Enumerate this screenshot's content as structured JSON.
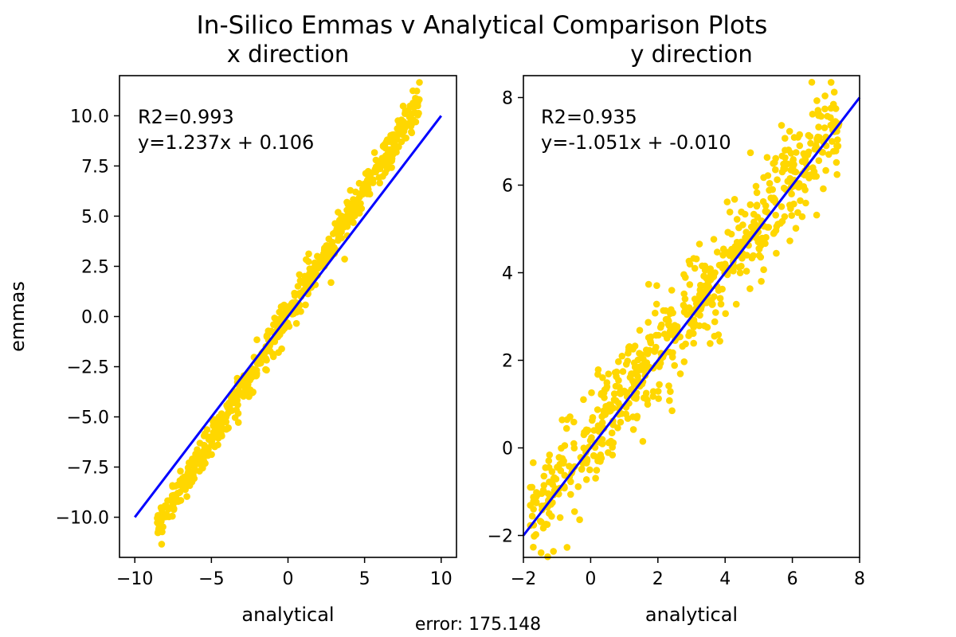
{
  "figure": {
    "suptitle": "In-Silico Emmas v Analytical Comparison Plots",
    "footer": "error: 175.148",
    "point_color": "#FFD700",
    "line_color": "#0000FF"
  },
  "chart_data": [
    {
      "type": "scatter",
      "title": "x direction",
      "xlabel": "analytical",
      "ylabel": "emmas",
      "xlim": [
        -11,
        11
      ],
      "ylim": [
        -12,
        12
      ],
      "xticks": [
        -10,
        -5,
        0,
        5,
        10
      ],
      "xtick_labels": [
        "−10",
        "−5",
        "0",
        "5",
        "10"
      ],
      "yticks": [
        -10,
        -7.5,
        -5,
        -2.5,
        0,
        2.5,
        5,
        7.5,
        10
      ],
      "ytick_labels": [
        "−10.0",
        "−7.5",
        "−5.0",
        "−2.5",
        "0.0",
        "2.5",
        "5.0",
        "7.5",
        "10.0"
      ],
      "grid": false,
      "annotation": [
        "R2=0.993",
        "y=1.237x + 0.106"
      ],
      "fit_line": {
        "x": [
          -10,
          10
        ],
        "y": [
          -10,
          10
        ]
      },
      "points": {
        "x_range": [
          -8.6,
          8.6
        ],
        "note": "approx. 700 points scattered tightly around y = 1.237x + 0.106",
        "x": [
          -8.4,
          -8.1,
          -7.8,
          -7.5,
          -7.2,
          -6.8,
          -6.5,
          -6.1,
          -5.8,
          -5.4,
          -5.0,
          -4.7,
          -4.3,
          -3.9,
          -3.5,
          -3.1,
          -2.7,
          -2.3,
          -1.9,
          -1.5,
          -1.1,
          -0.7,
          -0.3,
          0.1,
          0.5,
          0.9,
          1.3,
          1.7,
          2.1,
          2.5,
          2.9,
          3.3,
          3.7,
          4.1,
          4.5,
          4.9,
          5.3,
          5.7,
          6.1,
          6.5,
          6.9,
          7.3,
          7.7,
          8.1,
          8.4
        ],
        "y": [
          -10.5,
          -10.0,
          -9.6,
          -9.3,
          -8.8,
          -8.4,
          -8.0,
          -7.5,
          -7.2,
          -6.6,
          -6.2,
          -5.8,
          -5.3,
          -4.8,
          -4.3,
          -3.8,
          -3.3,
          -2.8,
          -2.3,
          -1.8,
          -1.3,
          -0.8,
          -0.3,
          0.2,
          0.7,
          1.2,
          1.7,
          2.2,
          2.7,
          3.2,
          3.7,
          4.2,
          4.7,
          5.2,
          5.7,
          6.2,
          6.7,
          7.2,
          7.7,
          8.1,
          8.6,
          9.1,
          9.6,
          10.1,
          10.5
        ]
      }
    },
    {
      "type": "scatter",
      "title": "y direction",
      "xlabel": "analytical",
      "ylabel": "",
      "xlim": [
        -2,
        8
      ],
      "ylim": [
        -2.5,
        8.5
      ],
      "xticks": [
        -2,
        0,
        2,
        4,
        6,
        8
      ],
      "xtick_labels": [
        "−2",
        "0",
        "2",
        "4",
        "6",
        "8"
      ],
      "yticks": [
        -2,
        0,
        2,
        4,
        6,
        8
      ],
      "ytick_labels": [
        "−2",
        "0",
        "2",
        "4",
        "6",
        "8"
      ],
      "grid": false,
      "annotation": [
        "R2=0.935",
        "y=-1.051x + -0.010"
      ],
      "fit_line": {
        "x": [
          -2,
          8
        ],
        "y": [
          -2,
          8
        ]
      },
      "points": {
        "x_range": [
          -1.8,
          7.4
        ],
        "note": "approx. 700 points, wider scatter around identity-like trend",
        "x": [
          -1.7,
          -1.4,
          -1.1,
          -0.8,
          -0.5,
          -0.2,
          0.1,
          0.4,
          0.7,
          1.0,
          1.3,
          1.6,
          1.9,
          2.2,
          2.5,
          2.8,
          3.1,
          3.4,
          3.7,
          4.0,
          4.3,
          4.6,
          4.9,
          5.2,
          5.5,
          5.8,
          6.1,
          6.4,
          6.7,
          7.0,
          7.3
        ],
        "y": [
          -1.4,
          -1.0,
          -0.7,
          -0.3,
          0.1,
          0.3,
          0.4,
          0.8,
          1.1,
          1.3,
          1.7,
          1.9,
          2.2,
          2.6,
          2.8,
          3.1,
          3.4,
          3.7,
          4.0,
          4.2,
          4.6,
          4.8,
          5.1,
          5.4,
          5.6,
          5.9,
          6.3,
          6.5,
          6.9,
          7.1,
          7.3
        ]
      }
    }
  ]
}
